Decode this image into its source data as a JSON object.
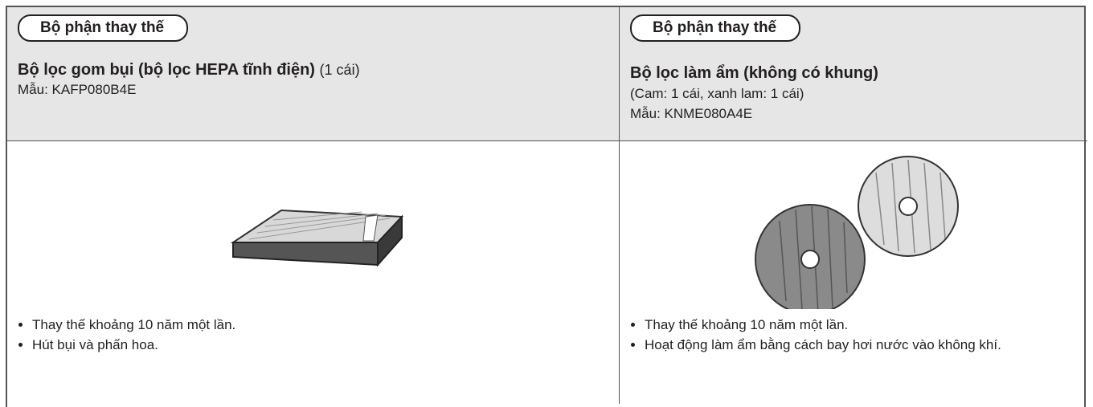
{
  "columns": [
    {
      "badge": "Bộ phận thay thế",
      "title": "Bộ lọc gom bụi (bộ lọc HEPA tĩnh điện)",
      "title_suffix": "(1 cái)",
      "details": [
        "Mẫu: KAFP080B4E"
      ],
      "bullets": [
        "Thay thế khoảng 10 năm một lần.",
        "Hút bụi và phấn hoa."
      ]
    },
    {
      "badge": "Bộ phận thay thế",
      "title": "Bộ lọc làm ẩm (không có khung)",
      "details": [
        "(Cam: 1 cái, xanh lam: 1 cái)",
        "Mẫu: KNME080A4E"
      ],
      "bullets": [
        "Thay thế khoảng 10 năm một lần.",
        "Hoạt động làm ẩm bằng cách bay hơi nước vào không khí."
      ]
    }
  ]
}
